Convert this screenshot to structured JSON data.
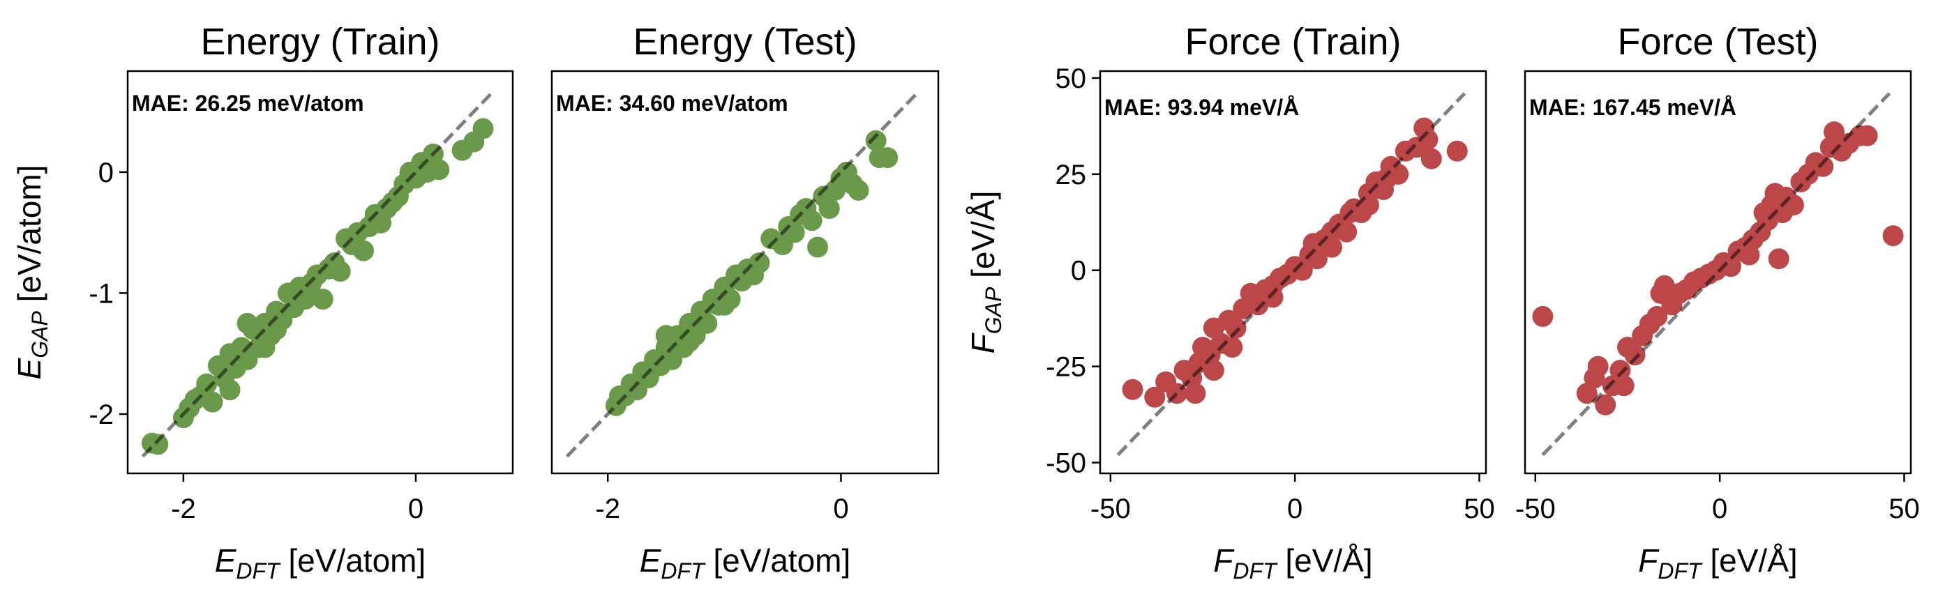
{
  "chart_data": [
    {
      "type": "scatter",
      "title": "Energy (Train)",
      "annotation": "MAE: 26.25 meV/atom",
      "xlabel_main": "E",
      "xlabel_sub": "DFT",
      "xlabel_unit": " [eV/atom]",
      "ylabel_main": "E",
      "ylabel_sub": "GAP",
      "ylabel_unit": " [eV/atom]",
      "xlim": [
        -2.48,
        0.835
      ],
      "ylim": [
        -2.49,
        0.835
      ],
      "xticks": [
        -2,
        0
      ],
      "xtick_labels": [
        "-2",
        "0"
      ],
      "yticks": [
        -2,
        -1,
        0
      ],
      "ytick_labels": [
        "-2",
        "-1",
        "0"
      ],
      "color": "#6a994a",
      "reference_line": [
        [
          -2.35,
          -2.35
        ],
        [
          0.67,
          0.67
        ]
      ],
      "points": [
        [
          -2.27,
          -2.24
        ],
        [
          -2.22,
          -2.25
        ],
        [
          -2.0,
          -2.03
        ],
        [
          -1.95,
          -1.95
        ],
        [
          -1.9,
          -1.88
        ],
        [
          -1.85,
          -1.85
        ],
        [
          -1.8,
          -1.75
        ],
        [
          -1.75,
          -1.9
        ],
        [
          -1.7,
          -1.6
        ],
        [
          -1.65,
          -1.7
        ],
        [
          -1.6,
          -1.5
        ],
        [
          -1.55,
          -1.62
        ],
        [
          -1.5,
          -1.45
        ],
        [
          -1.45,
          -1.55
        ],
        [
          -1.4,
          -1.3
        ],
        [
          -1.35,
          -1.45
        ],
        [
          -1.3,
          -1.25
        ],
        [
          -1.25,
          -1.35
        ],
        [
          -1.2,
          -1.15
        ],
        [
          -1.15,
          -1.22
        ],
        [
          -1.1,
          -1.0
        ],
        [
          -1.05,
          -1.12
        ],
        [
          -1.0,
          -0.95
        ],
        [
          -0.95,
          -1.05
        ],
        [
          -0.9,
          -0.92
        ],
        [
          -0.85,
          -0.85
        ],
        [
          -0.8,
          -1.05
        ],
        [
          -0.75,
          -0.8
        ],
        [
          -0.7,
          -0.75
        ],
        [
          -0.65,
          -0.82
        ],
        [
          -0.6,
          -0.55
        ],
        [
          -0.55,
          -0.6
        ],
        [
          -0.5,
          -0.5
        ],
        [
          -0.45,
          -0.65
        ],
        [
          -0.4,
          -0.45
        ],
        [
          -0.35,
          -0.35
        ],
        [
          -0.3,
          -0.42
        ],
        [
          -0.25,
          -0.3
        ],
        [
          -0.2,
          -0.25
        ],
        [
          -0.15,
          -0.2
        ],
        [
          -0.1,
          -0.1
        ],
        [
          -0.05,
          0.0
        ],
        [
          0.0,
          -0.05
        ],
        [
          0.05,
          0.08
        ],
        [
          0.1,
          0.0
        ],
        [
          0.15,
          0.15
        ],
        [
          0.2,
          0.02
        ],
        [
          0.4,
          0.18
        ],
        [
          0.5,
          0.25
        ],
        [
          0.58,
          0.36
        ],
        [
          -1.45,
          -1.25
        ],
        [
          -1.3,
          -1.45
        ],
        [
          -1.6,
          -1.8
        ],
        [
          -1.2,
          -1.3
        ]
      ]
    },
    {
      "type": "scatter",
      "title": "Energy (Test)",
      "annotation": "MAE: 34.60 meV/atom",
      "xlabel_main": "E",
      "xlabel_sub": "DFT",
      "xlabel_unit": " [eV/atom]",
      "xlim": [
        -2.48,
        0.835
      ],
      "ylim": [
        -2.49,
        0.835
      ],
      "xticks": [
        -2,
        0
      ],
      "xtick_labels": [
        "-2",
        "0"
      ],
      "yticks": [],
      "ytick_labels": [],
      "color": "#6a994a",
      "reference_line": [
        [
          -2.35,
          -2.35
        ],
        [
          0.67,
          0.67
        ]
      ],
      "points": [
        [
          -1.93,
          -1.93
        ],
        [
          -1.9,
          -1.85
        ],
        [
          -1.85,
          -1.85
        ],
        [
          -1.8,
          -1.75
        ],
        [
          -1.75,
          -1.8
        ],
        [
          -1.7,
          -1.65
        ],
        [
          -1.65,
          -1.7
        ],
        [
          -1.6,
          -1.55
        ],
        [
          -1.55,
          -1.6
        ],
        [
          -1.5,
          -1.45
        ],
        [
          -1.45,
          -1.55
        ],
        [
          -1.4,
          -1.35
        ],
        [
          -1.35,
          -1.45
        ],
        [
          -1.3,
          -1.25
        ],
        [
          -1.25,
          -1.35
        ],
        [
          -1.2,
          -1.15
        ],
        [
          -1.15,
          -1.25
        ],
        [
          -1.1,
          -1.05
        ],
        [
          -1.05,
          -1.1
        ],
        [
          -1.0,
          -0.95
        ],
        [
          -0.95,
          -1.05
        ],
        [
          -0.9,
          -0.85
        ],
        [
          -0.85,
          -0.9
        ],
        [
          -0.8,
          -0.8
        ],
        [
          -0.75,
          -0.85
        ],
        [
          -0.7,
          -0.75
        ],
        [
          -0.6,
          -0.55
        ],
        [
          -0.5,
          -0.6
        ],
        [
          -0.45,
          -0.45
        ],
        [
          -0.4,
          -0.5
        ],
        [
          -0.35,
          -0.35
        ],
        [
          -0.3,
          -0.3
        ],
        [
          -0.25,
          -0.4
        ],
        [
          -0.2,
          -0.62
        ],
        [
          -0.15,
          -0.2
        ],
        [
          -0.1,
          -0.3
        ],
        [
          -0.05,
          -0.15
        ],
        [
          0.0,
          -0.05
        ],
        [
          0.05,
          0.0
        ],
        [
          0.1,
          -0.1
        ],
        [
          0.15,
          -0.15
        ],
        [
          0.3,
          0.26
        ],
        [
          0.33,
          0.12
        ],
        [
          0.4,
          0.12
        ],
        [
          -1.5,
          -1.35
        ],
        [
          -1.3,
          -1.4
        ],
        [
          -1.0,
          -1.1
        ]
      ]
    },
    {
      "type": "scatter",
      "title": "Force (Train)",
      "annotation": "MAE: 93.94 meV/Å",
      "xlabel_main": "F",
      "xlabel_sub": "DFT",
      "xlabel_unit": " [eV/Å]",
      "ylabel_main": "F",
      "ylabel_sub": "GAP",
      "ylabel_unit": " [eV/Å]",
      "xlim": [
        -52.8,
        51.8
      ],
      "ylim": [
        -52.8,
        51.8
      ],
      "xticks": [
        -50,
        0,
        50
      ],
      "xtick_labels": [
        "-50",
        "0",
        "50"
      ],
      "yticks": [
        -50,
        -25,
        0,
        25,
        50
      ],
      "ytick_labels": [
        "-50",
        "-25",
        "0",
        "25",
        "50"
      ],
      "color": "#bc4749",
      "reference_line": [
        [
          -48,
          -48
        ],
        [
          46,
          46
        ]
      ],
      "points": [
        [
          -44,
          -31
        ],
        [
          -38,
          -33
        ],
        [
          -35,
          -29
        ],
        [
          -32,
          -32
        ],
        [
          -30,
          -26
        ],
        [
          -28,
          -28
        ],
        [
          -26,
          -24
        ],
        [
          -25,
          -20
        ],
        [
          -23,
          -22
        ],
        [
          -22,
          -15
        ],
        [
          -20,
          -19
        ],
        [
          -18,
          -13
        ],
        [
          -16,
          -15
        ],
        [
          -14,
          -10
        ],
        [
          -12,
          -6
        ],
        [
          -10,
          -9
        ],
        [
          -8,
          -5
        ],
        [
          -6,
          -7
        ],
        [
          -4,
          -2
        ],
        [
          -2,
          -1
        ],
        [
          0,
          1
        ],
        [
          2,
          0
        ],
        [
          4,
          4
        ],
        [
          6,
          3
        ],
        [
          8,
          8
        ],
        [
          10,
          10
        ],
        [
          12,
          12
        ],
        [
          14,
          10
        ],
        [
          15,
          15
        ],
        [
          16,
          16
        ],
        [
          18,
          15
        ],
        [
          20,
          20
        ],
        [
          22,
          23
        ],
        [
          24,
          21
        ],
        [
          26,
          27
        ],
        [
          28,
          25
        ],
        [
          30,
          31
        ],
        [
          33,
          32
        ],
        [
          35,
          37
        ],
        [
          36,
          34
        ],
        [
          37,
          29
        ],
        [
          44,
          31
        ],
        [
          -27,
          -32
        ],
        [
          -22,
          -26
        ],
        [
          -17,
          -20
        ],
        [
          -6,
          -4
        ],
        [
          5,
          7
        ],
        [
          10,
          6
        ],
        [
          20,
          17
        ],
        [
          25,
          24
        ]
      ]
    },
    {
      "type": "scatter",
      "title": "Force (Test)",
      "annotation": "MAE: 167.45 meV/Å",
      "xlabel_main": "F",
      "xlabel_sub": "DFT",
      "xlabel_unit": " [eV/Å]",
      "xlim": [
        -52.8,
        51.8
      ],
      "ylim": [
        -52.8,
        51.8
      ],
      "xticks": [
        -50,
        0,
        50
      ],
      "xtick_labels": [
        "-50",
        "0",
        "50"
      ],
      "yticks": [],
      "ytick_labels": [],
      "color": "#bc4749",
      "reference_line": [
        [
          -48,
          -48
        ],
        [
          46,
          46
        ]
      ],
      "points": [
        [
          -48,
          -12
        ],
        [
          -36,
          -32
        ],
        [
          -34,
          -28
        ],
        [
          -33,
          -25
        ],
        [
          -31,
          -35
        ],
        [
          -29,
          -30
        ],
        [
          -27,
          -26
        ],
        [
          -25,
          -20
        ],
        [
          -23,
          -22
        ],
        [
          -21,
          -17
        ],
        [
          -19,
          -14
        ],
        [
          -17,
          -12
        ],
        [
          -16,
          -6
        ],
        [
          -15,
          -4
        ],
        [
          -13,
          -9
        ],
        [
          -11,
          -6
        ],
        [
          -9,
          -5
        ],
        [
          -7,
          -3
        ],
        [
          -5,
          -2
        ],
        [
          -3,
          -1
        ],
        [
          -1,
          0
        ],
        [
          1,
          2
        ],
        [
          3,
          1
        ],
        [
          5,
          5
        ],
        [
          7,
          6
        ],
        [
          9,
          8
        ],
        [
          11,
          10
        ],
        [
          13,
          13
        ],
        [
          14,
          17
        ],
        [
          15,
          20
        ],
        [
          16,
          3
        ],
        [
          17,
          15
        ],
        [
          18,
          19
        ],
        [
          20,
          17
        ],
        [
          22,
          23
        ],
        [
          24,
          25
        ],
        [
          26,
          28
        ],
        [
          28,
          27
        ],
        [
          30,
          32
        ],
        [
          31,
          36
        ],
        [
          33,
          31
        ],
        [
          35,
          33
        ],
        [
          38,
          35
        ],
        [
          40,
          35
        ],
        [
          47,
          9
        ],
        [
          8,
          4
        ],
        [
          -26,
          -30
        ],
        [
          12,
          15
        ]
      ]
    }
  ]
}
